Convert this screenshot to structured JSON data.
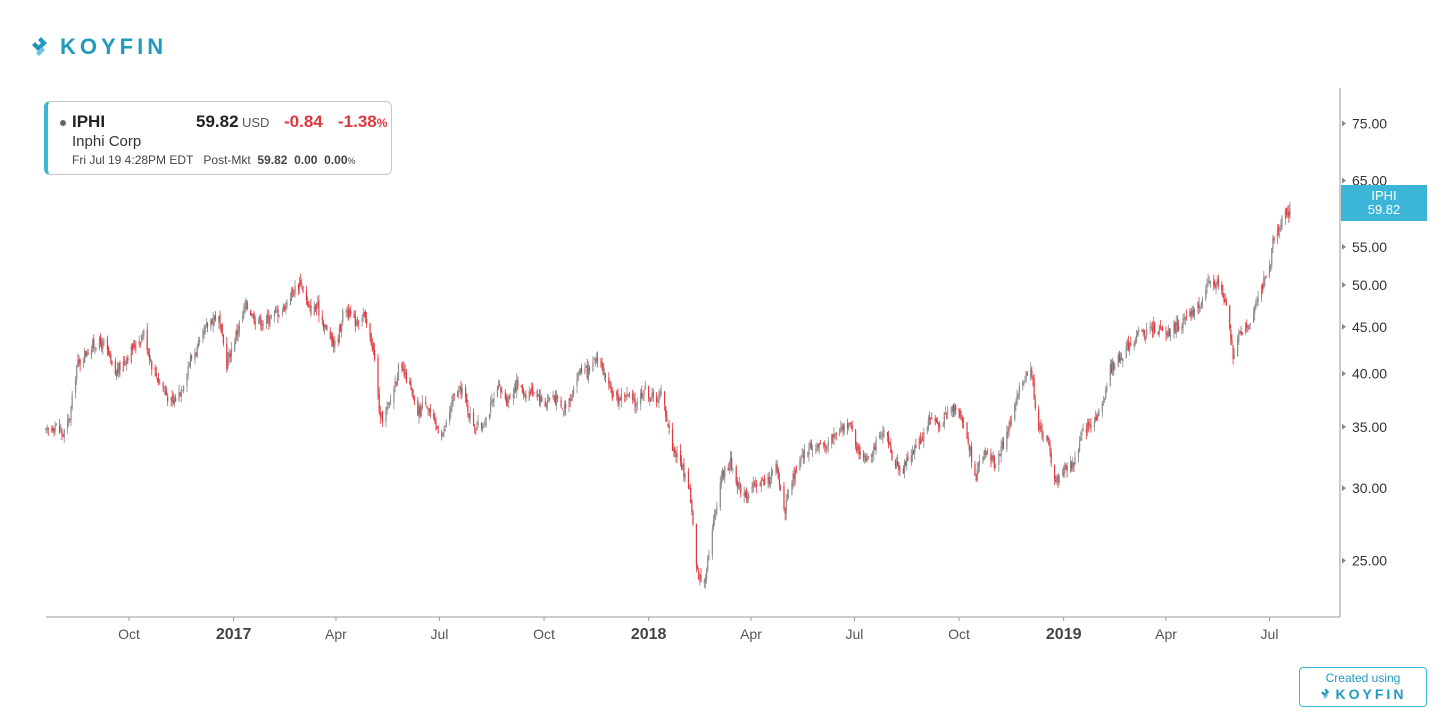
{
  "brand": {
    "name": "KOYFIN",
    "accent": "#1f9bbf"
  },
  "quote": {
    "ticker": "IPHI",
    "price": "59.82",
    "currency": "USD",
    "change": "-0.84",
    "change_pct": "-1.38",
    "pct_sign": "%",
    "company": "Inphi Corp",
    "timestamp": "Fri Jul 19 4:28PM EDT",
    "session_label": "Post-Mkt",
    "session_price": "59.82",
    "session_change": "0.00",
    "session_pct": "0.00",
    "session_pct_sign": "%"
  },
  "price_tag": {
    "ticker": "IPHI",
    "price": "59.82",
    "color": "#3bb5d8"
  },
  "credit": {
    "line1": "Created using",
    "brand": "KOYFIN"
  },
  "chart_data": {
    "type": "candlestick",
    "scale": "log",
    "ylim": [
      21.7,
      82
    ],
    "y_ticks": [
      {
        "value": 75,
        "label": "75.00"
      },
      {
        "value": 65,
        "label": "65.00"
      },
      {
        "value": 55,
        "label": "55.00"
      },
      {
        "value": 50,
        "label": "50.00"
      },
      {
        "value": 45,
        "label": "45.00"
      },
      {
        "value": 40,
        "label": "40.00"
      },
      {
        "value": 35,
        "label": "35.00"
      },
      {
        "value": 30,
        "label": "30.00"
      },
      {
        "value": 25,
        "label": "25.00"
      }
    ],
    "x_range": [
      "2016-07-20",
      "2019-09-01"
    ],
    "x_ticks": [
      {
        "date": "2016-10-01",
        "label": "Oct",
        "major": false
      },
      {
        "date": "2017-01-01",
        "label": "2017",
        "major": true
      },
      {
        "date": "2017-04-01",
        "label": "Apr",
        "major": false
      },
      {
        "date": "2017-07-01",
        "label": "Jul",
        "major": false
      },
      {
        "date": "2017-10-01",
        "label": "Oct",
        "major": false
      },
      {
        "date": "2018-01-01",
        "label": "2018",
        "major": true
      },
      {
        "date": "2018-04-01",
        "label": "Apr",
        "major": false
      },
      {
        "date": "2018-07-01",
        "label": "Jul",
        "major": false
      },
      {
        "date": "2018-10-01",
        "label": "Oct",
        "major": false
      },
      {
        "date": "2019-01-01",
        "label": "2019",
        "major": true
      },
      {
        "date": "2019-04-01",
        "label": "Apr",
        "major": false
      },
      {
        "date": "2019-07-01",
        "label": "Jul",
        "major": false
      }
    ],
    "up_color": "#8a8a8a",
    "down_color": "#e0383e",
    "close_path": [
      [
        "2016-07-20",
        34.5
      ],
      [
        "2016-07-28",
        35.2
      ],
      [
        "2016-08-04",
        34.3
      ],
      [
        "2016-08-10",
        35.8
      ],
      [
        "2016-08-16",
        40.8
      ],
      [
        "2016-08-24",
        42.2
      ],
      [
        "2016-09-02",
        43.2
      ],
      [
        "2016-09-10",
        43.0
      ],
      [
        "2016-09-18",
        39.8
      ],
      [
        "2016-09-26",
        41.2
      ],
      [
        "2016-10-06",
        43.0
      ],
      [
        "2016-10-14",
        44.3
      ],
      [
        "2016-10-22",
        40.5
      ],
      [
        "2016-10-30",
        38.8
      ],
      [
        "2016-11-08",
        37.0
      ],
      [
        "2016-11-16",
        38.5
      ],
      [
        "2016-11-24",
        41.5
      ],
      [
        "2016-12-02",
        43.0
      ],
      [
        "2016-12-10",
        45.5
      ],
      [
        "2016-12-18",
        46.5
      ],
      [
        "2016-12-26",
        41.0
      ],
      [
        "2017-01-04",
        44.5
      ],
      [
        "2017-01-12",
        47.5
      ],
      [
        "2017-01-20",
        46.0
      ],
      [
        "2017-01-28",
        45.5
      ],
      [
        "2017-02-05",
        46.5
      ],
      [
        "2017-02-13",
        47.0
      ],
      [
        "2017-02-21",
        49.0
      ],
      [
        "2017-03-01",
        50.5
      ],
      [
        "2017-03-08",
        47.0
      ],
      [
        "2017-03-16",
        47.2
      ],
      [
        "2017-03-24",
        44.5
      ],
      [
        "2017-04-01",
        42.8
      ],
      [
        "2017-04-09",
        47.5
      ],
      [
        "2017-04-17",
        45.5
      ],
      [
        "2017-04-25",
        46.5
      ],
      [
        "2017-05-04",
        42.5
      ],
      [
        "2017-05-10",
        35.5
      ],
      [
        "2017-05-18",
        37.0
      ],
      [
        "2017-05-26",
        40.5
      ],
      [
        "2017-06-03",
        39.5
      ],
      [
        "2017-06-11",
        36.0
      ],
      [
        "2017-06-19",
        37.5
      ],
      [
        "2017-06-27",
        35.0
      ],
      [
        "2017-07-05",
        34.5
      ],
      [
        "2017-07-13",
        37.5
      ],
      [
        "2017-07-21",
        38.5
      ],
      [
        "2017-07-29",
        35.5
      ],
      [
        "2017-08-06",
        34.8
      ],
      [
        "2017-08-14",
        36.5
      ],
      [
        "2017-08-22",
        38.5
      ],
      [
        "2017-08-30",
        37.5
      ],
      [
        "2017-09-07",
        39.0
      ],
      [
        "2017-09-15",
        38.0
      ],
      [
        "2017-09-23",
        38.5
      ],
      [
        "2017-10-01",
        37.0
      ],
      [
        "2017-10-09",
        38.0
      ],
      [
        "2017-10-17",
        36.5
      ],
      [
        "2017-10-25",
        38.0
      ],
      [
        "2017-11-02",
        40.5
      ],
      [
        "2017-11-10",
        40.0
      ],
      [
        "2017-11-18",
        42.0
      ],
      [
        "2017-11-26",
        38.5
      ],
      [
        "2017-12-04",
        37.5
      ],
      [
        "2017-12-12",
        38.0
      ],
      [
        "2017-12-20",
        37.0
      ],
      [
        "2017-12-28",
        38.5
      ],
      [
        "2018-01-05",
        37.5
      ],
      [
        "2018-01-13",
        38.0
      ],
      [
        "2018-01-21",
        33.5
      ],
      [
        "2018-01-29",
        32.0
      ],
      [
        "2018-02-06",
        30.0
      ],
      [
        "2018-02-12",
        24.5
      ],
      [
        "2018-02-18",
        23.4
      ],
      [
        "2018-02-26",
        27.0
      ],
      [
        "2018-03-06",
        31.0
      ],
      [
        "2018-03-14",
        32.0
      ],
      [
        "2018-03-22",
        30.0
      ],
      [
        "2018-03-30",
        29.5
      ],
      [
        "2018-04-07",
        30.5
      ],
      [
        "2018-04-15",
        30.5
      ],
      [
        "2018-04-23",
        31.5
      ],
      [
        "2018-05-01",
        28.5
      ],
      [
        "2018-05-09",
        31.0
      ],
      [
        "2018-05-17",
        32.5
      ],
      [
        "2018-05-25",
        33.5
      ],
      [
        "2018-06-02",
        33.0
      ],
      [
        "2018-06-10",
        34.0
      ],
      [
        "2018-06-18",
        34.5
      ],
      [
        "2018-06-26",
        35.5
      ],
      [
        "2018-07-04",
        33.0
      ],
      [
        "2018-07-12",
        32.5
      ],
      [
        "2018-07-20",
        33.5
      ],
      [
        "2018-07-28",
        34.5
      ],
      [
        "2018-08-05",
        32.0
      ],
      [
        "2018-08-13",
        31.5
      ],
      [
        "2018-08-21",
        33.0
      ],
      [
        "2018-08-29",
        34.0
      ],
      [
        "2018-09-06",
        36.0
      ],
      [
        "2018-09-14",
        35.0
      ],
      [
        "2018-09-22",
        36.5
      ],
      [
        "2018-09-30",
        37.0
      ],
      [
        "2018-10-08",
        34.0
      ],
      [
        "2018-10-16",
        31.0
      ],
      [
        "2018-10-24",
        33.0
      ],
      [
        "2018-11-01",
        32.0
      ],
      [
        "2018-11-09",
        33.5
      ],
      [
        "2018-11-17",
        36.0
      ],
      [
        "2018-11-25",
        39.0
      ],
      [
        "2018-12-03",
        41.0
      ],
      [
        "2018-12-09",
        35.0
      ],
      [
        "2018-12-17",
        34.0
      ],
      [
        "2018-12-25",
        30.5
      ],
      [
        "2019-01-02",
        31.5
      ],
      [
        "2019-01-10",
        32.0
      ],
      [
        "2019-01-18",
        34.5
      ],
      [
        "2019-01-26",
        35.5
      ],
      [
        "2019-02-03",
        36.5
      ],
      [
        "2019-02-11",
        40.5
      ],
      [
        "2019-02-19",
        41.5
      ],
      [
        "2019-02-27",
        43.0
      ],
      [
        "2019-03-07",
        44.0
      ],
      [
        "2019-03-15",
        44.5
      ],
      [
        "2019-03-23",
        45.0
      ],
      [
        "2019-03-31",
        44.0
      ],
      [
        "2019-04-08",
        45.0
      ],
      [
        "2019-04-16",
        45.5
      ],
      [
        "2019-04-24",
        46.5
      ],
      [
        "2019-05-02",
        48.0
      ],
      [
        "2019-05-10",
        50.5
      ],
      [
        "2019-05-18",
        50.0
      ],
      [
        "2019-05-24",
        47.0
      ],
      [
        "2019-05-30",
        42.0
      ],
      [
        "2019-06-06",
        44.5
      ],
      [
        "2019-06-14",
        45.5
      ],
      [
        "2019-06-22",
        49.5
      ],
      [
        "2019-06-30",
        51.0
      ],
      [
        "2019-07-04",
        55.5
      ],
      [
        "2019-07-10",
        58.0
      ],
      [
        "2019-07-15",
        60.5
      ],
      [
        "2019-07-19",
        59.82
      ]
    ]
  }
}
